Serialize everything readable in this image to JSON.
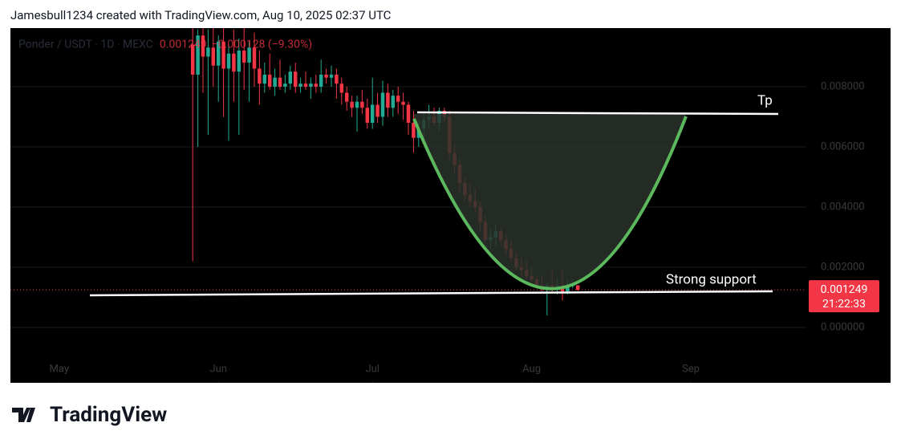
{
  "header": "Jamesbull1234 created with TradingView.com, Aug 10, 2025 02:37 UTC",
  "brand": "TradingView",
  "chart_data": {
    "type": "candlestick",
    "legend": {
      "symbol": "Ponder / USDT · 1D · MEXC",
      "last": "0.001249",
      "change": "−0.000128 (−9.30%)"
    },
    "last_price_label": "0.001249",
    "countdown": "21:22:33",
    "up_color": "#22ab94",
    "down_color": "#f23645",
    "grid": true,
    "annotations": [
      "Tp",
      "Strong support"
    ],
    "xlim": [
      -35.5,
      119.5
    ],
    "xticks": [
      {
        "value": -26,
        "label": "May"
      },
      {
        "value": 5,
        "label": "Jun"
      },
      {
        "value": 35,
        "label": "Jul"
      },
      {
        "value": 66,
        "label": "Aug"
      },
      {
        "value": 97,
        "label": "Sep"
      }
    ],
    "ylim": [
      -0.00184,
      0.009947
    ],
    "yticks": [
      {
        "value": 0,
        "label": "0.000000"
      },
      {
        "value": 0.002,
        "label": "0.002000"
      },
      {
        "value": 0.004,
        "label": "0.004000"
      },
      {
        "value": 0.006,
        "label": "0.006000"
      },
      {
        "value": 0.008,
        "label": "0.008000"
      }
    ],
    "ohlc": [
      [
        0.0094,
        0.0101,
        0.0022,
        0.0084
      ],
      [
        0.0084,
        0.0099,
        0.006,
        0.0097
      ],
      [
        0.0097,
        0.0103,
        0.0078,
        0.009
      ],
      [
        0.009,
        0.0099,
        0.0064,
        0.0093
      ],
      [
        0.0093,
        0.01,
        0.008,
        0.0087
      ],
      [
        0.0087,
        0.0097,
        0.0075,
        0.0095
      ],
      [
        0.0095,
        0.0101,
        0.007,
        0.0086
      ],
      [
        0.0086,
        0.0094,
        0.0062,
        0.0091
      ],
      [
        0.0091,
        0.0099,
        0.0075,
        0.0085
      ],
      [
        0.0085,
        0.0096,
        0.0064,
        0.0092
      ],
      [
        0.0092,
        0.01,
        0.0079,
        0.0088
      ],
      [
        0.0088,
        0.0095,
        0.0075,
        0.0093
      ],
      [
        0.0093,
        0.0098,
        0.008,
        0.0086
      ],
      [
        0.0086,
        0.0092,
        0.0074,
        0.0081
      ],
      [
        0.0081,
        0.0088,
        0.0078,
        0.0084
      ],
      [
        0.0084,
        0.0091,
        0.0079,
        0.008
      ],
      [
        0.008,
        0.0086,
        0.0077,
        0.0083
      ],
      [
        0.0083,
        0.0089,
        0.0079,
        0.008
      ],
      [
        0.008,
        0.0084,
        0.0078,
        0.0081
      ],
      [
        0.0081,
        0.0087,
        0.0079,
        0.0085
      ],
      [
        0.0085,
        0.0088,
        0.0078,
        0.008
      ],
      [
        0.008,
        0.0083,
        0.0078,
        0.0081
      ],
      [
        0.0081,
        0.0085,
        0.0079,
        0.008
      ],
      [
        0.008,
        0.0083,
        0.0076,
        0.0081
      ],
      [
        0.0081,
        0.0084,
        0.0078,
        0.008
      ],
      [
        0.008,
        0.0089,
        0.0078,
        0.0084
      ],
      [
        0.0084,
        0.0086,
        0.0081,
        0.0083
      ],
      [
        0.0083,
        0.0087,
        0.008,
        0.0084
      ],
      [
        0.0084,
        0.0086,
        0.0076,
        0.0081
      ],
      [
        0.0081,
        0.0083,
        0.0074,
        0.0078
      ],
      [
        0.0078,
        0.008,
        0.0072,
        0.0075
      ],
      [
        0.0075,
        0.0077,
        0.007,
        0.0073
      ],
      [
        0.0073,
        0.0077,
        0.0065,
        0.0075
      ],
      [
        0.0075,
        0.0079,
        0.0071,
        0.0073
      ],
      [
        0.0073,
        0.0076,
        0.0066,
        0.0068
      ],
      [
        0.0068,
        0.0083,
        0.0066,
        0.0074
      ],
      [
        0.0074,
        0.0078,
        0.0068,
        0.007
      ],
      [
        0.007,
        0.0082,
        0.0067,
        0.0078
      ],
      [
        0.0078,
        0.0081,
        0.007,
        0.0073
      ],
      [
        0.0073,
        0.0079,
        0.007,
        0.0077
      ],
      [
        0.0077,
        0.008,
        0.0071,
        0.0075
      ],
      [
        0.0075,
        0.0078,
        0.0069,
        0.0074
      ],
      [
        0.0074,
        0.0075,
        0.0064,
        0.0068
      ],
      [
        0.0068,
        0.0072,
        0.0058,
        0.0063
      ],
      [
        0.0063,
        0.0069,
        0.006,
        0.0066
      ],
      [
        0.0066,
        0.0071,
        0.0062,
        0.0069
      ],
      [
        0.0069,
        0.0074,
        0.0066,
        0.007
      ],
      [
        0.007,
        0.0073,
        0.0067,
        0.0068
      ],
      [
        0.0068,
        0.0073,
        0.0065,
        0.0072
      ],
      [
        0.0072,
        0.0073,
        0.0068,
        0.007
      ],
      [
        0.007,
        0.0072,
        0.0056,
        0.0058
      ],
      [
        0.0058,
        0.0061,
        0.0051,
        0.0054
      ],
      [
        0.0054,
        0.0056,
        0.0045,
        0.0048
      ],
      [
        0.0048,
        0.005,
        0.0042,
        0.0044
      ],
      [
        0.0044,
        0.0048,
        0.004,
        0.0042
      ],
      [
        0.0042,
        0.0046,
        0.0038,
        0.004
      ],
      [
        0.004,
        0.0042,
        0.0032,
        0.0035
      ],
      [
        0.0035,
        0.0037,
        0.0028,
        0.0029
      ],
      [
        0.0029,
        0.0033,
        0.0026,
        0.003
      ],
      [
        0.003,
        0.0034,
        0.0027,
        0.0032
      ],
      [
        0.0032,
        0.0033,
        0.0027,
        0.0029
      ],
      [
        0.0029,
        0.0031,
        0.0024,
        0.0026
      ],
      [
        0.0026,
        0.0029,
        0.0022,
        0.0023
      ],
      [
        0.0023,
        0.0025,
        0.0019,
        0.002
      ],
      [
        0.002,
        0.0023,
        0.0017,
        0.0019
      ],
      [
        0.0019,
        0.0022,
        0.0016,
        0.0017
      ],
      [
        0.0017,
        0.002,
        0.0015,
        0.0016
      ],
      [
        0.0016,
        0.0017,
        0.0013,
        0.0014
      ],
      [
        0.0014,
        0.0017,
        0.0012,
        0.0013
      ],
      [
        0.0013,
        0.0015,
        0.0004,
        0.0014
      ],
      [
        0.0014,
        0.0019,
        0.0012,
        0.0013
      ],
      [
        0.0013,
        0.0016,
        0.0011,
        0.0014
      ],
      [
        0.0014,
        0.0019,
        0.0009,
        0.0012
      ],
      [
        0.0012,
        0.0016,
        0.0011,
        0.0014
      ],
      [
        0.0014,
        0.0016,
        0.0013,
        0.0014
      ],
      [
        0.0014,
        0.0014,
        0.00122,
        0.001249
      ]
    ]
  }
}
